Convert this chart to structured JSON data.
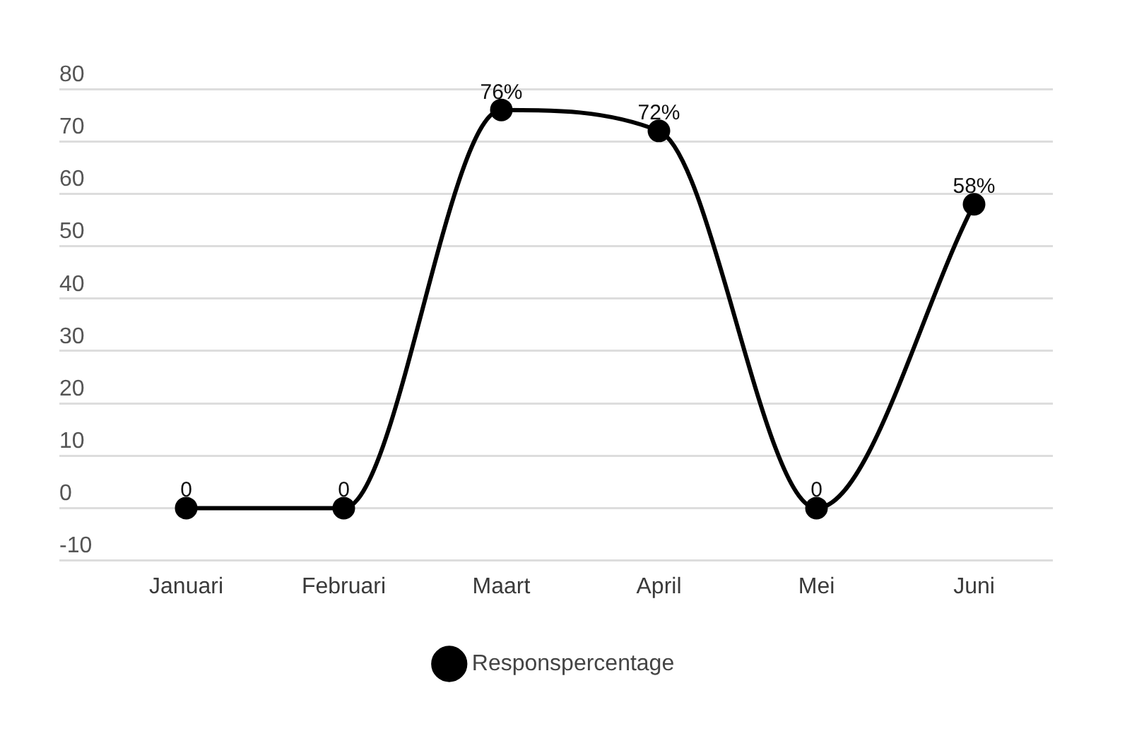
{
  "chart_data": {
    "type": "line",
    "categories": [
      "Januari",
      "Februari",
      "Maart",
      "April",
      "Mei",
      "Juni"
    ],
    "series": [
      {
        "name": "Responspercentage",
        "color": "#000000",
        "values": [
          0,
          0,
          76,
          72,
          0,
          58
        ],
        "value_labels": [
          "0",
          "0",
          "76%",
          "72%",
          "0",
          "58%"
        ]
      }
    ],
    "ylim": [
      -10,
      80
    ],
    "yticks": [
      -10,
      0,
      10,
      20,
      30,
      40,
      50,
      60,
      70,
      80
    ],
    "grid": "y",
    "legend": "bottom",
    "marker": "circle",
    "line_style": "solid"
  }
}
